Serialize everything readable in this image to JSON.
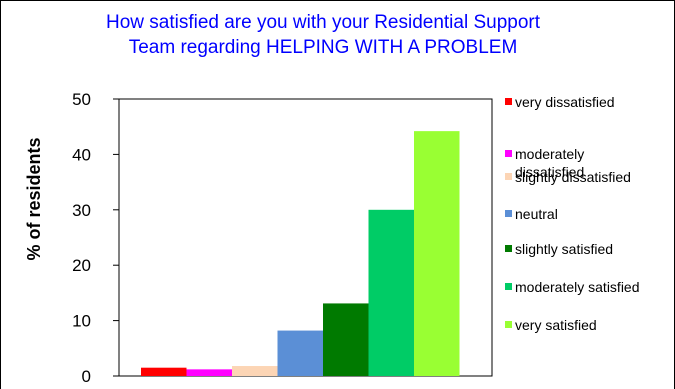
{
  "chart_data": {
    "type": "bar",
    "title": [
      "How satisfied are you with your Residential Support",
      "Team regarding  HELPING WITH A PROBLEM"
    ],
    "ylabel": "% of residents",
    "xlabel": "",
    "ylim": [
      0,
      50
    ],
    "yticks": [
      0,
      10,
      20,
      30,
      40,
      50
    ],
    "legend_position": "right",
    "series": [
      {
        "name": "very dissatisfied",
        "label_lines": [
          "very dissatisfied"
        ],
        "value": 1.5,
        "color": "#ff0000"
      },
      {
        "name": "moderately dissatisfied",
        "label_lines": [
          "moderately",
          "dissatisfied"
        ],
        "value": 1.2,
        "color": "#ff00ff"
      },
      {
        "name": "slightly dissatisfied",
        "label_lines": [
          "slightly dissatisfied"
        ],
        "value": 1.8,
        "color": "#fcd5b5"
      },
      {
        "name": "neutral",
        "label_lines": [
          "neutral"
        ],
        "value": 8.2,
        "color": "#5b8fd6"
      },
      {
        "name": "slightly satisfied",
        "label_lines": [
          "slightly satisfied"
        ],
        "value": 13.1,
        "color": "#007a00"
      },
      {
        "name": "moderately satisfied",
        "label_lines": [
          "moderately satisfied"
        ],
        "value": 30.0,
        "color": "#00cc66"
      },
      {
        "name": "very satisfied",
        "label_lines": [
          "very satisfied"
        ],
        "value": 44.2,
        "color": "#99ff33"
      }
    ]
  }
}
